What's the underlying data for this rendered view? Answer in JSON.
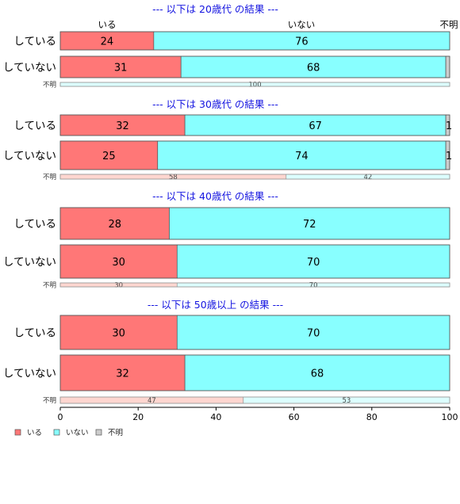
{
  "chart_data": {
    "type": "bar",
    "orientation": "horizontal",
    "stacked": true,
    "xlim": [
      0,
      100
    ],
    "xticks": [
      "0",
      "20",
      "40",
      "60",
      "80",
      "100"
    ],
    "top_labels": [
      "いる",
      "いない",
      "不明"
    ],
    "colors": {
      "いる": "#ff7777",
      "いない": "#88ffff",
      "不明": "#cccccc"
    },
    "legend": {
      "placement": "bottom-left",
      "entries": [
        "いる",
        "いない",
        "不明"
      ]
    },
    "panels": [
      {
        "title": "--- 以下は 20歳代 の結果 ---",
        "rows": [
          {
            "label": "している",
            "values": [
              24,
              76,
              0
            ],
            "texts": [
              "24",
              "76",
              ""
            ]
          },
          {
            "label": "していない",
            "values": [
              31,
              68,
              1
            ],
            "texts": [
              "31",
              "68",
              ""
            ]
          },
          {
            "label": "不明",
            "small": true,
            "values": [
              0,
              100,
              0
            ],
            "texts": [
              "",
              "100",
              ""
            ]
          }
        ]
      },
      {
        "title": "--- 以下は 30歳代 の結果 ---",
        "rows": [
          {
            "label": "している",
            "values": [
              32,
              67,
              1
            ],
            "texts": [
              "32",
              "67",
              "1"
            ]
          },
          {
            "label": "していない",
            "values": [
              25,
              74,
              1
            ],
            "texts": [
              "25",
              "74",
              "1"
            ]
          },
          {
            "label": "不明",
            "small": true,
            "values": [
              58,
              42,
              0
            ],
            "texts": [
              "58",
              "42",
              ""
            ]
          }
        ]
      },
      {
        "title": "--- 以下は 40歳代 の結果 ---",
        "rows": [
          {
            "label": "している",
            "values": [
              28,
              72,
              0
            ],
            "texts": [
              "28",
              "72",
              ""
            ]
          },
          {
            "label": "していない",
            "values": [
              30,
              70,
              0
            ],
            "texts": [
              "30",
              "70",
              ""
            ]
          },
          {
            "label": "不明",
            "small": true,
            "values": [
              30,
              70,
              0
            ],
            "texts": [
              "30",
              "70",
              ""
            ]
          }
        ]
      },
      {
        "title": "--- 以下は 50歳以上 の結果 ---",
        "rows": [
          {
            "label": "している",
            "values": [
              30,
              70,
              0
            ],
            "texts": [
              "30",
              "70",
              ""
            ]
          },
          {
            "label": "していない",
            "values": [
              32,
              68,
              0
            ],
            "texts": [
              "32",
              "68",
              ""
            ]
          },
          {
            "label": "不明",
            "small": true,
            "values": [
              47,
              53,
              0
            ],
            "texts": [
              "47",
              "53",
              ""
            ]
          }
        ]
      }
    ]
  }
}
